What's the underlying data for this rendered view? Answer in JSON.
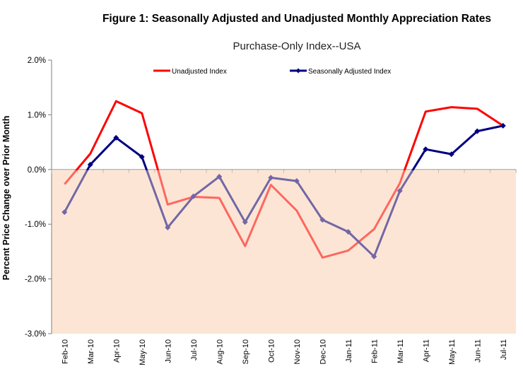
{
  "chart_data": {
    "type": "line",
    "title": "Figure 1: Seasonally Adjusted and Unadjusted Monthly Appreciation Rates",
    "subtitle": "Purchase-Only Index--USA",
    "ylabel": "Percent Price Change over Prior Month",
    "xlabel": "",
    "ylim": [
      -3.0,
      2.0
    ],
    "yticks": [
      2.0,
      1.0,
      0.0,
      -1.0,
      -2.0,
      -3.0
    ],
    "ytick_labels": [
      "2.0%",
      "1.0%",
      "0.0%",
      "-1.0%",
      "-2.0%",
      "-3.0%"
    ],
    "negative_region_shaded": true,
    "legend_position": "top",
    "categories": [
      "Feb-10",
      "Mar-10",
      "Apr-10",
      "May-10",
      "Jun-10",
      "Jul-10",
      "Aug-10",
      "Sep-10",
      "Oct-10",
      "Nov-10",
      "Dec-10",
      "Jan-11",
      "Feb-11",
      "Mar-11",
      "Apr-11",
      "May-11",
      "Jun-11",
      "Jul-11"
    ],
    "series": [
      {
        "name": "Unadjusted Index",
        "color": "#ff0000",
        "marker": "none",
        "values": [
          -0.27,
          0.29,
          1.25,
          1.03,
          -0.64,
          -0.5,
          -0.52,
          -1.4,
          -0.28,
          -0.75,
          -1.61,
          -1.48,
          -1.09,
          -0.25,
          1.06,
          1.14,
          1.11,
          0.8
        ]
      },
      {
        "name": "Seasonally Adjusted Index",
        "color": "#000080",
        "marker": "diamond",
        "values": [
          -0.78,
          0.09,
          0.58,
          0.23,
          -1.06,
          -0.49,
          -0.13,
          -0.96,
          -0.15,
          -0.21,
          -0.92,
          -1.14,
          -1.59,
          -0.39,
          0.37,
          0.28,
          0.7,
          0.8
        ]
      }
    ]
  }
}
